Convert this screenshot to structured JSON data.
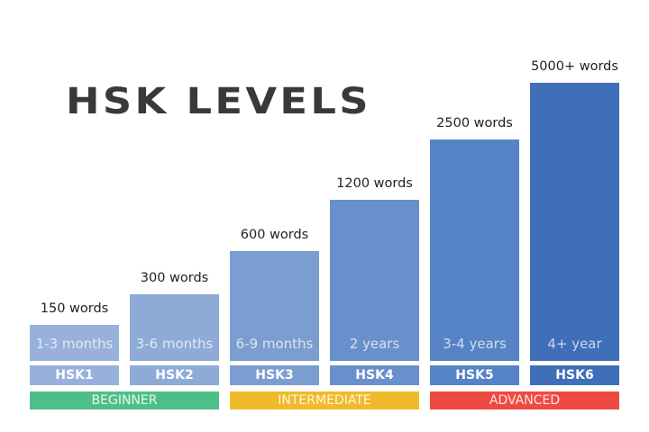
{
  "chart_data": {
    "type": "bar",
    "title": "HSK LEVELS",
    "categories": [
      "HSK1",
      "HSK2",
      "HSK3",
      "HSK4",
      "HSK5",
      "HSK6"
    ],
    "word_labels": [
      "150 words",
      "300 words",
      "600 words",
      "1200 words",
      "2500 words",
      "5000+ words"
    ],
    "values": [
      150,
      300,
      600,
      1200,
      2500,
      5000
    ],
    "durations": [
      "1-3 months",
      "3-6 months",
      "6-9 months",
      "2 years",
      "3-4 years",
      "4+ year"
    ],
    "bar_colors": [
      "#98b1da",
      "#8eaad6",
      "#7b9dd0",
      "#6a90cb",
      "#5583c5",
      "#3f6fb8"
    ],
    "groups": [
      {
        "label": "BEGINNER",
        "color": "#4fbf8a"
      },
      {
        "label": "INTERMEDIATE",
        "color": "#f0bb2a"
      },
      {
        "label": "ADVANCED",
        "color": "#ef4a42"
      }
    ]
  }
}
